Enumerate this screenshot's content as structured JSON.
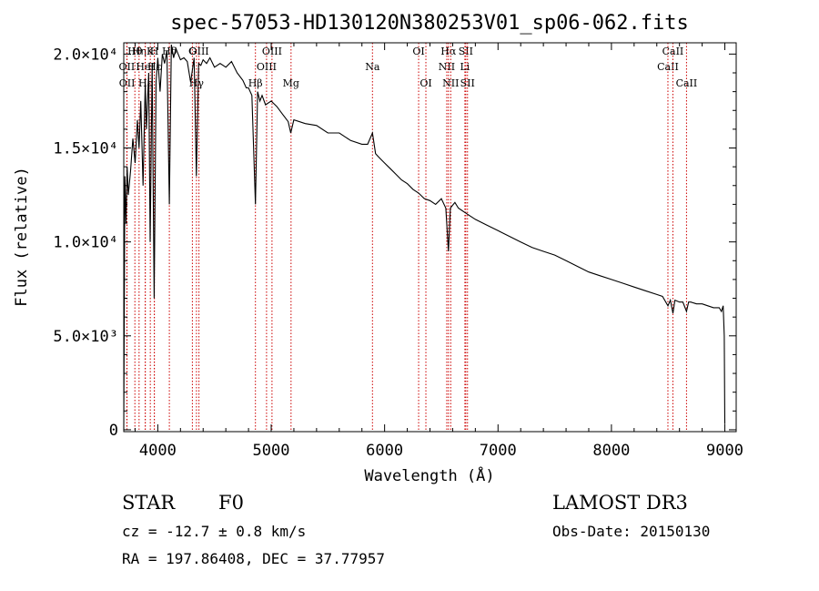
{
  "chart_data": {
    "type": "line",
    "title": "spec-57053-HD130120N380253V01_sp06-062.fits",
    "xlabel": "Wavelength (Å)",
    "ylabel": "Flux (relative)",
    "xlim": [
      3700,
      9100
    ],
    "ylim": [
      -100,
      20600
    ],
    "x_ticks": [
      4000,
      5000,
      6000,
      7000,
      8000,
      9000
    ],
    "y_ticks": [
      {
        "value": 0,
        "label": "0"
      },
      {
        "value": 5000,
        "label": "5.0×10³"
      },
      {
        "value": 10000,
        "label": "1.0×10⁴"
      },
      {
        "value": 15000,
        "label": "1.5×10⁴"
      },
      {
        "value": 20000,
        "label": "2.0×10⁴"
      }
    ],
    "series": [
      {
        "name": "spectrum",
        "x": [
          3700,
          3710,
          3720,
          3730,
          3740,
          3760,
          3780,
          3800,
          3820,
          3835,
          3850,
          3870,
          3889,
          3900,
          3920,
          3933,
          3950,
          3968,
          3985,
          4000,
          4020,
          4040,
          4060,
          4080,
          4102,
          4120,
          4140,
          4160,
          4180,
          4200,
          4230,
          4260,
          4290,
          4320,
          4340,
          4360,
          4380,
          4400,
          4430,
          4460,
          4500,
          4550,
          4600,
          4650,
          4700,
          4750,
          4780,
          4800,
          4830,
          4861,
          4880,
          4900,
          4920,
          4950,
          5000,
          5050,
          5100,
          5150,
          5172,
          5200,
          5300,
          5400,
          5500,
          5600,
          5700,
          5800,
          5850,
          5893,
          5920,
          5950,
          6000,
          6050,
          6100,
          6150,
          6200,
          6250,
          6300,
          6350,
          6400,
          6450,
          6500,
          6540,
          6563,
          6580,
          6620,
          6650,
          6700,
          6750,
          6800,
          6900,
          7000,
          7100,
          7200,
          7300,
          7400,
          7500,
          7600,
          7700,
          7800,
          7900,
          8000,
          8100,
          8200,
          8300,
          8400,
          8450,
          8498,
          8520,
          8542,
          8560,
          8600,
          8630,
          8662,
          8680,
          8700,
          8750,
          8800,
          8850,
          8900,
          8950,
          8970,
          8985,
          8995,
          9000
        ],
        "y": [
          0,
          13500,
          11000,
          14000,
          12500,
          13800,
          15500,
          14200,
          16500,
          15000,
          17500,
          13000,
          18500,
          16000,
          19000,
          10000,
          19500,
          7000,
          18500,
          19800,
          18000,
          20000,
          19500,
          20200,
          12000,
          20500,
          19800,
          20300,
          20000,
          19700,
          19800,
          19600,
          18500,
          19800,
          13500,
          19500,
          19400,
          19700,
          19500,
          19800,
          19300,
          19500,
          19300,
          19600,
          19000,
          18600,
          18200,
          18200,
          17800,
          12000,
          18000,
          17500,
          17800,
          17300,
          17500,
          17200,
          16800,
          16400,
          15800,
          16500,
          16300,
          16200,
          15800,
          15800,
          15400,
          15200,
          15200,
          15800,
          14700,
          14500,
          14200,
          13900,
          13600,
          13300,
          13100,
          12800,
          12600,
          12300,
          12200,
          12000,
          12300,
          11800,
          9500,
          11800,
          12100,
          11800,
          11600,
          11400,
          11200,
          10900,
          10600,
          10300,
          10000,
          9700,
          9500,
          9300,
          9000,
          8700,
          8400,
          8200,
          8000,
          7800,
          7600,
          7400,
          7200,
          7100,
          6600,
          6900,
          6200,
          6900,
          6800,
          6800,
          6300,
          6800,
          6800,
          6700,
          6700,
          6600,
          6500,
          6500,
          6300,
          6600,
          5000,
          300
        ]
      }
    ],
    "lines": [
      {
        "label": "Hθ",
        "x": 3798,
        "tier": 0
      },
      {
        "label": "OII",
        "x": 3727,
        "tier": 1
      },
      {
        "label": "OII",
        "x": 3729,
        "tier": 2
      },
      {
        "label": "Hη",
        "x": 3835,
        "tier": 0
      },
      {
        "label": "HeI",
        "x": 3889,
        "tier": 1
      },
      {
        "label": "Hε",
        "x": 3890,
        "tier": 2
      },
      {
        "label": "K",
        "x": 3934,
        "tier": 0
      },
      {
        "label": "H",
        "x": 3969,
        "tier": 0
      },
      {
        "label": "Hε",
        "x": 3970,
        "tier": 1
      },
      {
        "label": "Hδ",
        "x": 4102,
        "tier": 0
      },
      {
        "label": "G",
        "x": 4305,
        "tier": 0
      },
      {
        "label": "OIII",
        "x": 4363,
        "tier": 0
      },
      {
        "label": "Hγ",
        "x": 4341,
        "tier": 2
      },
      {
        "label": "Hβ",
        "x": 4861,
        "tier": 3
      },
      {
        "label": "OIII",
        "x": 4959,
        "tier": 1
      },
      {
        "label": "OIII",
        "x": 5007,
        "tier": 0
      },
      {
        "label": "Mg",
        "x": 5175,
        "tier": 3
      },
      {
        "label": "Na",
        "x": 5893,
        "tier": 1
      },
      {
        "label": "OI",
        "x": 6300,
        "tier": 0
      },
      {
        "label": "OI",
        "x": 6364,
        "tier": 2
      },
      {
        "label": "NII",
        "x": 6548,
        "tier": 1
      },
      {
        "label": "Hα",
        "x": 6563,
        "tier": 0
      },
      {
        "label": "NII",
        "x": 6583,
        "tier": 2
      },
      {
        "label": "SII",
        "x": 6716,
        "tier": 0
      },
      {
        "label": "Li",
        "x": 6708,
        "tier": 1
      },
      {
        "label": "SII",
        "x": 6731,
        "tier": 2
      },
      {
        "label": "CaII",
        "x": 8498,
        "tier": 1
      },
      {
        "label": "CaII",
        "x": 8542,
        "tier": 0
      },
      {
        "label": "CaII",
        "x": 8662,
        "tier": 2
      }
    ]
  },
  "info": {
    "object_class": "STAR",
    "subclass": "F0",
    "velocity": "cz = -12.7 ± 0.8 km/s",
    "coords": "RA = 197.86408, DEC =  37.77957",
    "survey": "LAMOST DR3",
    "obs_date": "Obs-Date: 20150130"
  },
  "colors": {
    "line_marker": "#cc0000",
    "spectrum": "#000000"
  }
}
